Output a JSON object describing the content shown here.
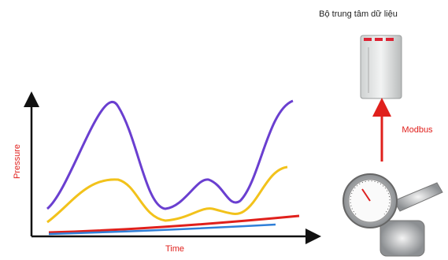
{
  "title": "Bộ trung tâm dữ liệu",
  "link_label": "Modbus",
  "chart": {
    "y_label": "Pressure",
    "x_label": "Time"
  }
}
